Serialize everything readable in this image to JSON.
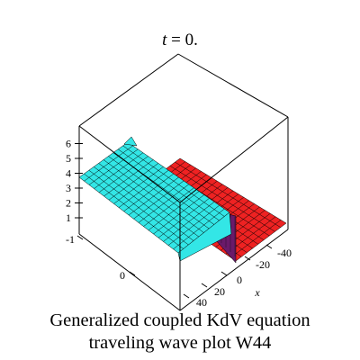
{
  "plot": {
    "title_var": "t",
    "title_rest": " = 0.",
    "z_ticks": [
      "1",
      "2",
      "3",
      "4",
      "5",
      "6"
    ],
    "left_ticks": [
      "-1",
      "0"
    ],
    "x_ticks": [
      "-40",
      "-20",
      "0",
      "20",
      "40"
    ],
    "x_label": "x"
  },
  "caption": {
    "line1": "Generalized coupled KdV equation",
    "line2": "traveling wave plot W44"
  },
  "colors": {
    "upper_surface": "#33e6e6",
    "lower_surface": "#ee2222",
    "transition": "#6a1a6a",
    "mesh": "#000000",
    "box": "#000000"
  }
}
